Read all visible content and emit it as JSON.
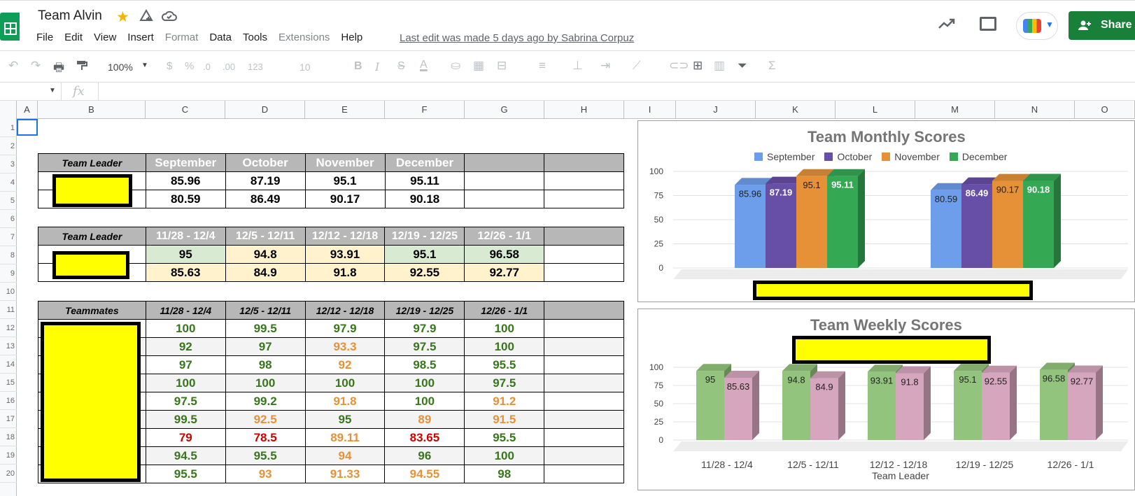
{
  "app": {
    "title": "Team Alvin",
    "last_edit": "Last edit was made 5 days ago by Sabrina Corpuz",
    "share_label": "Share",
    "menu": [
      {
        "label": "File",
        "enabled": true
      },
      {
        "label": "Edit",
        "enabled": true
      },
      {
        "label": "View",
        "enabled": true
      },
      {
        "label": "Insert",
        "enabled": true
      },
      {
        "label": "Format",
        "enabled": false
      },
      {
        "label": "Data",
        "enabled": true
      },
      {
        "label": "Tools",
        "enabled": true
      },
      {
        "label": "Extensions",
        "enabled": false
      },
      {
        "label": "Help",
        "enabled": true
      }
    ],
    "star_color": "#f4b400"
  },
  "toolbar": {
    "zoom": "100%",
    "currency": "$",
    "percent": "%",
    "dec_decrease": ".0",
    "dec_increase": ".00",
    "number_format": "123",
    "font_size": "10",
    "bold": "B",
    "italic": "I",
    "strike": "S",
    "text_color": "A"
  },
  "formula_bar": {
    "fx": "fx",
    "cell_ref": "",
    "value": ""
  },
  "columns": [
    "A",
    "B",
    "C",
    "D",
    "E",
    "F",
    "G",
    "H",
    "I",
    "J",
    "K",
    "L",
    "M",
    "N",
    "O"
  ],
  "rows": [
    "1",
    "2",
    "3",
    "4",
    "5",
    "6",
    "7",
    "8",
    "9",
    "10",
    "11",
    "12",
    "13",
    "14",
    "15",
    "16",
    "17",
    "18",
    "19",
    "20"
  ],
  "monthly_table": {
    "header": [
      "Team Leader",
      "September",
      "October",
      "November",
      "December",
      "",
      ""
    ],
    "rows": [
      [
        "85.96",
        "87.19",
        "95.1",
        "95.11"
      ],
      [
        "80.59",
        "86.49",
        "90.17",
        "90.18"
      ]
    ]
  },
  "weekly_leader_table": {
    "header": [
      "Team Leader",
      "11/28 - 12/4",
      "12/5 - 12/11",
      "12/12 - 12/18",
      "12/19 - 12/25",
      "12/26 - 1/1",
      ""
    ],
    "rows": [
      [
        "95",
        "94.8",
        "93.91",
        "95.1",
        "96.58"
      ],
      [
        "85.63",
        "84.9",
        "91.8",
        "92.55",
        "92.77"
      ]
    ]
  },
  "teammates_table": {
    "header": [
      "Teammates",
      "11/28 - 12/4",
      "12/5 - 12/11",
      "12/12 - 12/18",
      "12/19 - 12/25",
      "12/26 - 1/1",
      ""
    ],
    "rows": [
      [
        "100",
        "99.5",
        "97.9",
        "97.9",
        "100"
      ],
      [
        "92",
        "97",
        "93.3",
        "97.5",
        "100"
      ],
      [
        "97",
        "98",
        "92",
        "98.5",
        "95.5"
      ],
      [
        "100",
        "100",
        "100",
        "100",
        "97.5"
      ],
      [
        "97.5",
        "99.2",
        "91.8",
        "100",
        "91.2"
      ],
      [
        "99.5",
        "92.5",
        "95",
        "89",
        "91.5"
      ],
      [
        "79",
        "78.5",
        "89.11",
        "83.65",
        "95.5"
      ],
      [
        "94.5",
        "95.5",
        "94",
        "96",
        "100"
      ],
      [
        "95.5",
        "93",
        "91.33",
        "94.55",
        "98"
      ]
    ],
    "colors": [
      [
        "g",
        "g",
        "g",
        "g",
        "g"
      ],
      [
        "g",
        "g",
        "o",
        "g",
        "g"
      ],
      [
        "g",
        "g",
        "o",
        "g",
        "g"
      ],
      [
        "g",
        "g",
        "g",
        "g",
        "g"
      ],
      [
        "g",
        "g",
        "o",
        "g",
        "o"
      ],
      [
        "g",
        "o",
        "g",
        "o",
        "o"
      ],
      [
        "r",
        "r",
        "o",
        "r",
        "g"
      ],
      [
        "g",
        "g",
        "o",
        "g",
        "g"
      ],
      [
        "g",
        "o",
        "o",
        "o",
        "g"
      ]
    ]
  },
  "colors": {
    "good": "#38761d",
    "mid": "#e69138",
    "bad": "#cc0000",
    "header_gray": "#b7b7b7",
    "redaction": "#ffff00"
  },
  "chart_data": [
    {
      "type": "bar",
      "title": "Team Monthly Scores",
      "legend_position": "top",
      "categories": [
        "",
        ""
      ],
      "series": [
        {
          "name": "September",
          "color": "#6d9eeb",
          "values": [
            85.96,
            80.59
          ]
        },
        {
          "name": "October",
          "color": "#674ea7",
          "values": [
            87.19,
            86.49
          ]
        },
        {
          "name": "November",
          "color": "#e69138",
          "values": [
            95.1,
            90.17
          ]
        },
        {
          "name": "December",
          "color": "#34a853",
          "values": [
            95.11,
            90.18
          ]
        }
      ],
      "yticks": [
        "100",
        "75",
        "50",
        "25",
        "0"
      ],
      "ylim": [
        0,
        100
      ],
      "grid": true
    },
    {
      "type": "bar",
      "title": "Team Weekly Scores",
      "categories": [
        "11/28 - 12/4",
        "12/5 - 12/11",
        "12/12 - 12/18",
        "12/19 - 12/25",
        "12/26 - 1/1"
      ],
      "series": [
        {
          "color": "#93c47d",
          "values": [
            95,
            94.8,
            93.91,
            95.1,
            96.58
          ]
        },
        {
          "color": "#d5a6bd",
          "values": [
            85.63,
            84.9,
            91.8,
            92.55,
            92.77
          ]
        }
      ],
      "xlabel": "Team Leader",
      "yticks": [
        "100",
        "75",
        "50",
        "25",
        "0"
      ],
      "ylim": [
        0,
        100
      ],
      "grid": true
    }
  ]
}
